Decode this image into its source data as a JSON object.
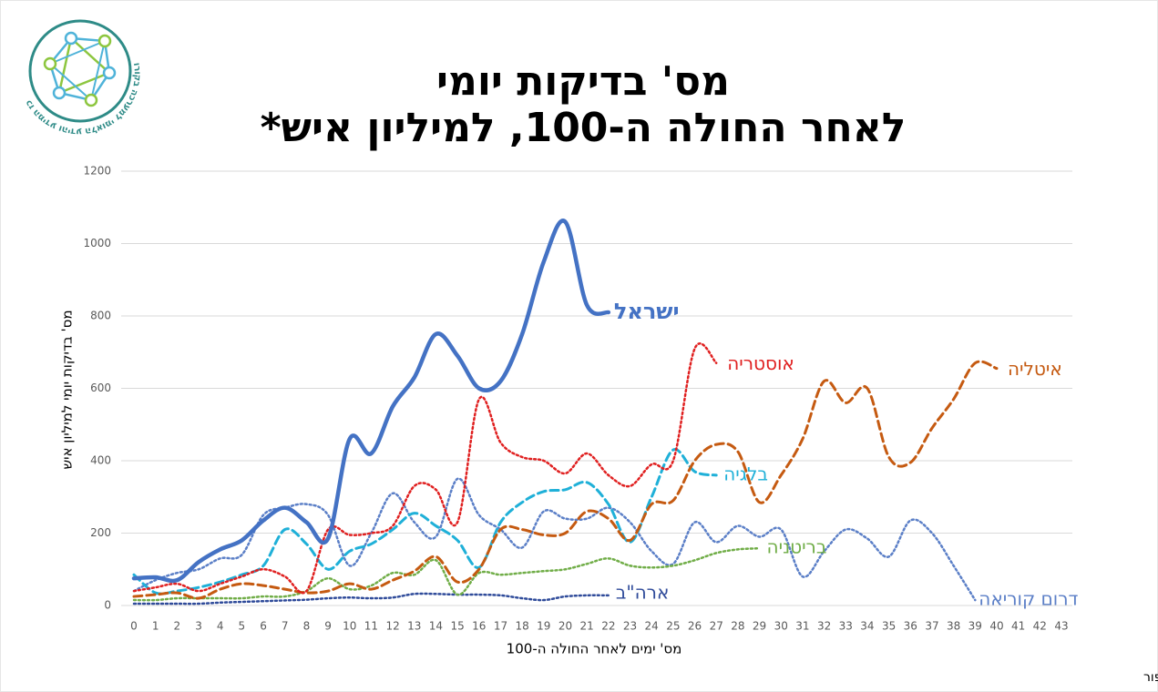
{
  "logo_text": "מרכז המידע והידע הלאומי למערכה בקורונה",
  "chart_data": {
    "type": "line",
    "title": [
      "מס' בדיקות יומי",
      "לאחר החולה ה-100, למיליון איש*"
    ],
    "y_label": "מס' בדיקות יומי למיליון איש",
    "x_label": "מס' ימים לאחר החולה ה-100",
    "footnote": "* חסרים נתונים רשמיים על גרמניה, צרפת וסינגפור",
    "x": [
      0,
      1,
      2,
      3,
      4,
      5,
      6,
      7,
      8,
      9,
      10,
      11,
      12,
      13,
      14,
      15,
      16,
      17,
      18,
      19,
      20,
      21,
      22,
      23,
      24,
      25,
      26,
      27,
      28,
      29,
      30,
      31,
      32,
      33,
      34,
      35,
      36,
      37,
      38,
      39,
      40,
      41,
      42,
      43
    ],
    "xlim": [
      0,
      43
    ],
    "xticks": [
      0,
      1,
      2,
      3,
      4,
      5,
      6,
      7,
      8,
      9,
      10,
      11,
      12,
      13,
      14,
      15,
      16,
      17,
      18,
      19,
      20,
      21,
      22,
      23,
      24,
      25,
      26,
      27,
      28,
      29,
      30,
      31,
      32,
      33,
      34,
      35,
      36,
      37,
      38,
      39,
      40,
      41,
      42,
      43
    ],
    "ylim": [
      0,
      1200
    ],
    "yticks": [
      0,
      200,
      400,
      600,
      800,
      1000,
      1200
    ],
    "grid": true,
    "series": [
      {
        "name": "דרום קוריאה",
        "color": "#5b7fc7",
        "dash": "dotted",
        "values": [
          40,
          70,
          90,
          100,
          130,
          140,
          250,
          270,
          280,
          250,
          110,
          200,
          310,
          230,
          190,
          350,
          250,
          210,
          160,
          260,
          240,
          240,
          270,
          230,
          150,
          115,
          230,
          175,
          220,
          190,
          210,
          80,
          150,
          210,
          185,
          135,
          235,
          200,
          110,
          15,
          null,
          null,
          null,
          null
        ]
      },
      {
        "name": "ארה\"ב",
        "color": "#2f4b9a",
        "dash": "dotted",
        "values": [
          5,
          5,
          5,
          5,
          8,
          10,
          12,
          14,
          16,
          20,
          22,
          20,
          22,
          32,
          32,
          30,
          30,
          28,
          20,
          15,
          25,
          28,
          28,
          null,
          null,
          null,
          null,
          null,
          null,
          null,
          null,
          null,
          null,
          null,
          null,
          null,
          null,
          null,
          null,
          null,
          null,
          null,
          null,
          null
        ]
      },
      {
        "name": "בריטניה",
        "color": "#70ad47",
        "dash": "dotted",
        "values": [
          15,
          15,
          20,
          20,
          20,
          20,
          25,
          25,
          40,
          75,
          45,
          55,
          90,
          85,
          125,
          30,
          90,
          85,
          90,
          95,
          100,
          115,
          130,
          110,
          105,
          110,
          125,
          145,
          155,
          158,
          null,
          null,
          null,
          null,
          null,
          null,
          null,
          null,
          null,
          null,
          null,
          null,
          null,
          null
        ]
      },
      {
        "name": "בלגיה",
        "color": "#1fb0d8",
        "dash": "dashed",
        "values": [
          85,
          35,
          40,
          50,
          65,
          85,
          110,
          210,
          170,
          100,
          150,
          170,
          210,
          255,
          220,
          180,
          105,
          230,
          285,
          315,
          320,
          340,
          280,
          175,
          300,
          430,
          370,
          360,
          null,
          null,
          null,
          null,
          null,
          null,
          null,
          null,
          null,
          null,
          null,
          null,
          null,
          null,
          null,
          null
        ]
      },
      {
        "name": "איטליה",
        "color": "#c55a11",
        "dash": "dashed",
        "values": [
          25,
          30,
          35,
          20,
          45,
          60,
          55,
          45,
          35,
          40,
          60,
          45,
          70,
          95,
          135,
          65,
          100,
          210,
          210,
          195,
          200,
          260,
          240,
          180,
          280,
          290,
          400,
          445,
          425,
          285,
          360,
          460,
          620,
          560,
          600,
          410,
          395,
          490,
          570,
          670,
          655,
          null,
          null,
          null
        ]
      },
      {
        "name": "אוסטריה",
        "color": "#e02020",
        "dash": "dotted",
        "values": [
          40,
          50,
          60,
          40,
          60,
          80,
          100,
          80,
          40,
          210,
          195,
          200,
          220,
          330,
          320,
          230,
          570,
          450,
          410,
          400,
          365,
          420,
          360,
          330,
          390,
          400,
          710,
          670,
          null,
          null,
          null,
          null,
          null,
          null,
          null,
          null,
          null,
          null,
          null,
          null,
          null,
          null,
          null,
          null
        ]
      },
      {
        "name": "ישראל",
        "color": "#4472c4",
        "dash": "solid",
        "values": [
          75,
          78,
          70,
          120,
          155,
          180,
          235,
          270,
          230,
          185,
          460,
          420,
          550,
          630,
          750,
          690,
          600,
          620,
          750,
          950,
          1060,
          830,
          810,
          null,
          null,
          null,
          null,
          null,
          null,
          null,
          null,
          null,
          null,
          null,
          null,
          null,
          null,
          null,
          null,
          null,
          null,
          null,
          null,
          null
        ]
      }
    ]
  }
}
